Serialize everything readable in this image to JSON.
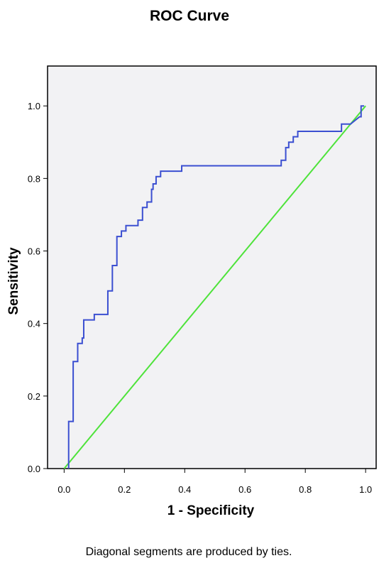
{
  "chart_data": {
    "type": "line",
    "title": "ROC Curve",
    "xlabel": "1 - Specificity",
    "ylabel": "Sensitivity",
    "xlim": [
      -0.055,
      1.035
    ],
    "ylim": [
      0.0,
      1.11
    ],
    "xticks": [
      "0.0",
      "0.2",
      "0.4",
      "0.6",
      "0.8",
      "1.0"
    ],
    "yticks": [
      "0.0",
      "0.2",
      "0.4",
      "0.6",
      "0.8",
      "1.0"
    ],
    "grid": false,
    "background": "#f2f2f4",
    "footnote": "Diagonal segments are produced by ties.",
    "series": [
      {
        "color": "#3b4fd1",
        "x": [
          0.015,
          0.015,
          0.03,
          0.03,
          0.045,
          0.045,
          0.06,
          0.06,
          0.065,
          0.065,
          0.1,
          0.1,
          0.145,
          0.145,
          0.16,
          0.16,
          0.175,
          0.175,
          0.19,
          0.19,
          0.205,
          0.205,
          0.245,
          0.245,
          0.26,
          0.26,
          0.275,
          0.275,
          0.29,
          0.29,
          0.295,
          0.295,
          0.305,
          0.305,
          0.32,
          0.32,
          0.39,
          0.39,
          0.72,
          0.72,
          0.735,
          0.735,
          0.745,
          0.745,
          0.76,
          0.76,
          0.775,
          0.775,
          0.805,
          0.805,
          0.92,
          0.92,
          0.95,
          0.95,
          0.98,
          0.985,
          0.985,
          0.995
        ],
        "y": [
          0.0,
          0.13,
          0.13,
          0.295,
          0.295,
          0.345,
          0.345,
          0.36,
          0.36,
          0.41,
          0.41,
          0.425,
          0.425,
          0.49,
          0.49,
          0.56,
          0.56,
          0.64,
          0.64,
          0.655,
          0.655,
          0.67,
          0.67,
          0.685,
          0.685,
          0.72,
          0.72,
          0.735,
          0.735,
          0.77,
          0.77,
          0.785,
          0.785,
          0.805,
          0.805,
          0.82,
          0.82,
          0.835,
          0.835,
          0.85,
          0.85,
          0.885,
          0.885,
          0.9,
          0.9,
          0.915,
          0.915,
          0.93,
          0.93,
          0.93,
          0.93,
          0.95,
          0.95,
          0.95,
          0.97,
          0.97,
          1.0,
          1.0
        ]
      },
      {
        "color": "#4ee33a",
        "x": [
          0.0,
          1.0
        ],
        "y": [
          0.0,
          1.0
        ]
      }
    ]
  }
}
